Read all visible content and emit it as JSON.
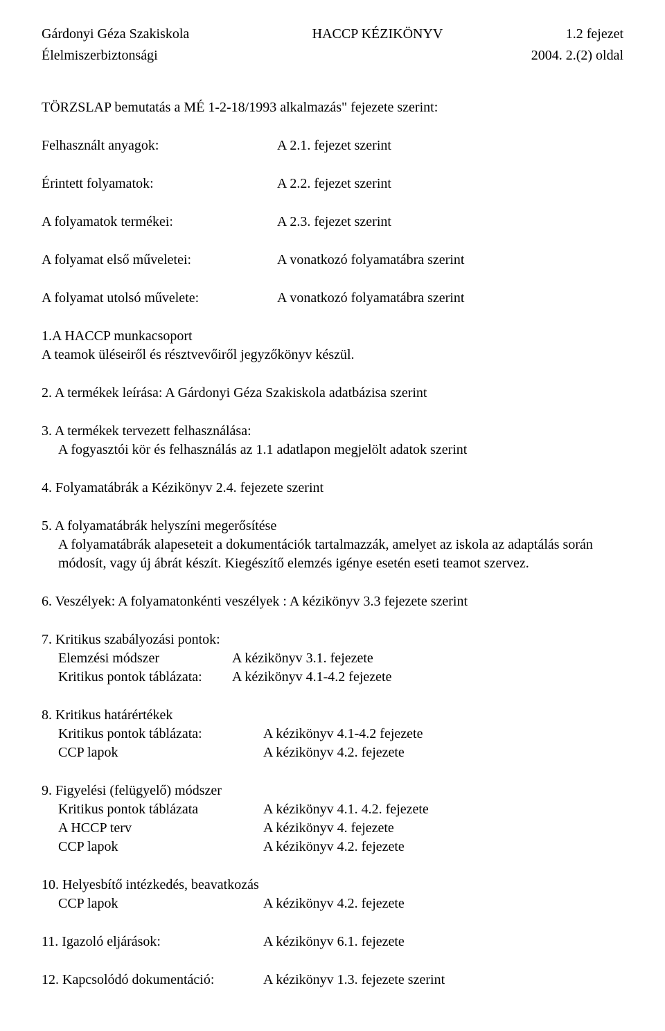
{
  "header": {
    "left": "Gárdonyi Géza Szakiskola",
    "center": "HACCP KÉZIKÖNYV",
    "right": "1.2 fejezet",
    "sub_left": "Élelmiszerbiztonsági",
    "sub_right": "2004. 2.(2) oldal"
  },
  "title": "TÖRZSLAP  bemutatás a MÉ 1-2-18/1993 alkalmazás\" fejezete szerint:",
  "rows": [
    {
      "label": "Felhasznált anyagok:",
      "value": "A 2.1. fejezet szerint"
    },
    {
      "label": "Érintett folyamatok:",
      "value": "A 2.2. fejezet szerint"
    },
    {
      "label": "A folyamatok termékei:",
      "value": "A 2.3. fejezet szerint"
    },
    {
      "label": "A folyamat első műveletei:",
      "value": "A vonatkozó folyamatábra szerint"
    },
    {
      "label": "A folyamat utolsó művelete:",
      "value": "A vonatkozó folyamatábra szerint"
    }
  ],
  "s1": {
    "line1": "1.A HACCP munkacsoport",
    "line2": "A teamok üléseiről és résztvevőiről jegyzőkönyv készül."
  },
  "s2": "2. A termékek leírása: A Gárdonyi Géza Szakiskola adatbázisa szerint",
  "s3": {
    "line1": "3. A termékek tervezett felhasználása:",
    "line2": "A fogyasztói kör és felhasználás az 1.1 adatlapon megjelölt adatok szerint"
  },
  "s4": "4. Folyamatábrák  a Kézikönyv 2.4. fejezete szerint",
  "s5": {
    "line1": "5. A folyamatábrák helyszíni megerősítése",
    "line2": "A folyamatábrák alapeseteit a dokumentációk tartalmazzák, amelyet az iskola az adaptálás során módosít, vagy új ábrát készít. Kiegészítő elemzés igénye esetén eseti teamot szervez."
  },
  "s6": "6. Veszélyek: A folyamatonkénti veszélyek : A kézikönyv 3.3 fejezete szerint",
  "s7": {
    "title": "7. Kritikus szabályozási pontok:",
    "items": [
      {
        "label": "Elemzési módszer",
        "value": "A kézikönyv 3.1. fejezete"
      },
      {
        "label": "Kritikus pontok táblázata:",
        "value": "A kézikönyv 4.1-4.2 fejezete"
      }
    ]
  },
  "s8": {
    "title": "8. Kritikus határértékek",
    "items": [
      {
        "label": "Kritikus pontok táblázata:",
        "value": "A kézikönyv 4.1-4.2 fejezete"
      },
      {
        "label": "CCP lapok",
        "value": "A kézikönyv 4.2. fejezete"
      }
    ]
  },
  "s9": {
    "title": "9. Figyelési (felügyelő) módszer",
    "items": [
      {
        "label": "Kritikus pontok táblázata",
        "value": "A kézikönyv 4.1. 4.2. fejezete"
      },
      {
        "label": "A HCCP terv",
        "value": "A kézikönyv 4. fejezete"
      },
      {
        "label": "CCP lapok",
        "value": "A kézikönyv 4.2. fejezete"
      }
    ]
  },
  "s10": {
    "title": "10. Helyesbítő intézkedés, beavatkozás",
    "items": [
      {
        "label": "CCP lapok",
        "value": "A kézikönyv 4.2. fejezete"
      }
    ]
  },
  "s11": {
    "label": "11. Igazoló eljárások:",
    "value": "A kézikönyv 6.1. fejezete"
  },
  "s12": {
    "label": "12. Kapcsolódó dokumentáció:",
    "value": "A kézikönyv 1.3. fejezete szerint"
  }
}
